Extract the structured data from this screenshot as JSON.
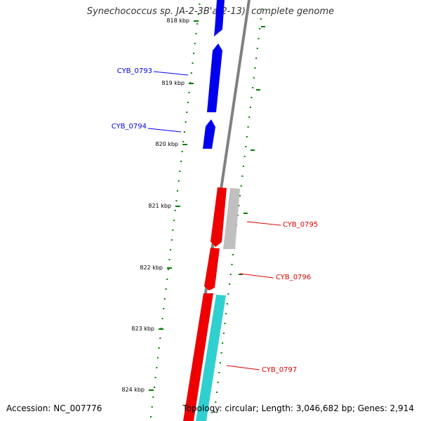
{
  "header": {
    "title": "Synechococcus sp. JA-2-3B'a(2-13), complete genome"
  },
  "footer": {
    "accession": "Accession: NC_007776",
    "stats": "Topology: circular; Length: 3,046,682 bp; Genes: 2,914"
  },
  "ruler": {
    "ticks": [
      {
        "label": "818 kbp"
      },
      {
        "label": "819 kbp"
      },
      {
        "label": "820 kbp"
      },
      {
        "label": "821 kbp"
      },
      {
        "label": "822 kbp"
      },
      {
        "label": "823 kbp"
      },
      {
        "label": "824 kbp"
      }
    ]
  },
  "genes": [
    {
      "name": "CYB_0793",
      "color": "#0000ee"
    },
    {
      "name": "CYB_0794",
      "color": "#0000ee"
    },
    {
      "name": "CYB_0795",
      "color": "#dd0000"
    },
    {
      "name": "CYB_0796",
      "color": "#dd0000"
    },
    {
      "name": "CYB_0797",
      "color": "#dd0000"
    }
  ],
  "colors": {
    "forward_strand": "#0000ee",
    "reverse_strand": "#ee0000",
    "rna_gene": "#c0c0c0",
    "cds_track": "#30d0d0",
    "backbone": "#808080",
    "gc_dots": "#008000"
  }
}
